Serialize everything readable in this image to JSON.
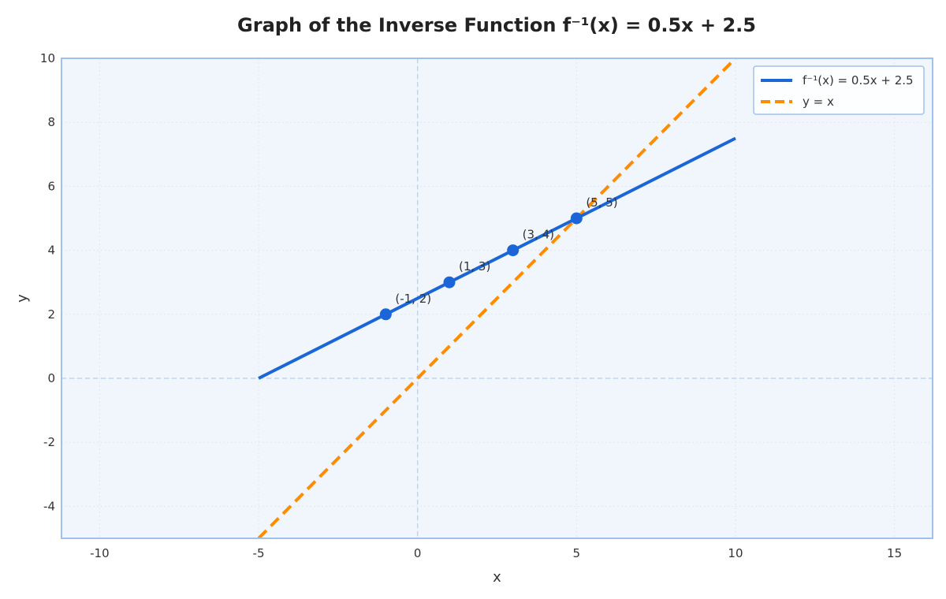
{
  "chart_data": {
    "type": "line",
    "title": "Graph of the Inverse Function f⁻¹(x) = 0.5x + 2.5",
    "xlabel": "x",
    "ylabel": "y",
    "xlim": [
      -11.2,
      16.2
    ],
    "ylim": [
      -5,
      10
    ],
    "xticks": [
      -10,
      -5,
      0,
      5,
      10,
      15
    ],
    "yticks": [
      -4,
      -2,
      0,
      2,
      4,
      6,
      8,
      10
    ],
    "grid": true,
    "legend_position": "top-right",
    "series": [
      {
        "name": "f⁻¹(x) = 0.5x + 2.5",
        "style": "solid",
        "color": "#1a66d9",
        "x": [
          -5,
          10
        ],
        "y": [
          0,
          7.5
        ]
      },
      {
        "name": "y = x",
        "style": "dashed",
        "color": "#ff8c00",
        "x": [
          -5,
          10
        ],
        "y": [
          -5,
          10
        ]
      }
    ],
    "points": [
      {
        "x": -1,
        "y": 2,
        "label": "(-1, 2)"
      },
      {
        "x": 1,
        "y": 3,
        "label": "(1, 3)"
      },
      {
        "x": 3,
        "y": 4,
        "label": "(3, 4)"
      },
      {
        "x": 5,
        "y": 5,
        "label": "(5, 5)"
      }
    ],
    "colors": {
      "plot_background": "#f1f6fd",
      "frame": "#9fc1ee",
      "zero_lines": "#bcd5f5",
      "grid": "#dde6f2",
      "points": "#1a66d9"
    }
  }
}
